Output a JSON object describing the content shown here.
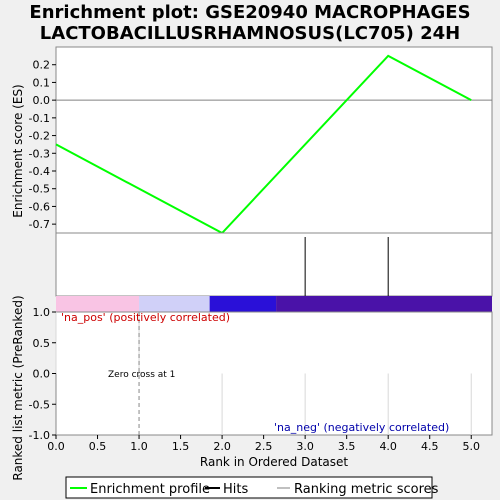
{
  "chart_data": {
    "type": "line",
    "title_line1": "Enrichment plot: GSE20940 MACROPHAGES",
    "title_line2": "LACTOBACILLUSRHAMNOSUS(LC705) 24H",
    "xlabel": "Rank in Ordered Dataset",
    "es_ylabel": "Enrichment score (ES)",
    "rank_ylabel": "Ranked list metric (PreRanked)",
    "xlim": [
      0,
      5.25
    ],
    "x_ticks": [
      "0.0",
      "0.5",
      "1.0",
      "1.5",
      "2.0",
      "2.5",
      "3.0",
      "3.5",
      "4.0",
      "4.5",
      "5.0"
    ],
    "es_ylim": [
      -0.75,
      0.3
    ],
    "es_ticks": [
      "0.2",
      "0.1",
      "0.0",
      "-0.1",
      "-0.2",
      "-0.3",
      "-0.4",
      "-0.5",
      "-0.6",
      "-0.7"
    ],
    "rank_ylim": [
      -1.0,
      1.0
    ],
    "rank_ticks": [
      "1.0",
      "0.5",
      "0.0",
      "-0.5",
      "-1.0"
    ],
    "series": [
      {
        "name": "Enrichment profile",
        "color": "#00ff00",
        "x": [
          0,
          2,
          4,
          5
        ],
        "y": [
          -0.25,
          -0.75,
          0.25,
          0.0
        ]
      }
    ],
    "hits": [
      3,
      4
    ],
    "ranking_metric": {
      "x": [
        0,
        1,
        2,
        3,
        4,
        5
      ],
      "values": [
        1.0,
        1.0,
        -1.0,
        -1.0,
        -1.0,
        -1.0
      ]
    },
    "colorbar_segments": [
      {
        "from": 0.0,
        "to": 1.0,
        "color": "#f9c4e4"
      },
      {
        "from": 1.0,
        "to": 1.85,
        "color": "#d0d0f8"
      },
      {
        "from": 1.85,
        "to": 2.65,
        "color": "#2a10d8"
      },
      {
        "from": 2.65,
        "to": 5.25,
        "color": "#4a12a8"
      }
    ],
    "pos_label": "'na_pos' (positively correlated)",
    "neg_label": "'na_neg' (negatively correlated)",
    "zero_cross_label": "Zero cross at 1",
    "zero_cross_x": 1,
    "legend": {
      "placement": "bottom",
      "items": [
        "Enrichment profile",
        "Hits",
        "Ranking metric scores"
      ]
    },
    "colors": {
      "profile": "#00ff00",
      "hits": "#000000",
      "metric": "#c0c0c0",
      "pos_text": "#cc0000",
      "neg_text": "#0000aa"
    }
  }
}
